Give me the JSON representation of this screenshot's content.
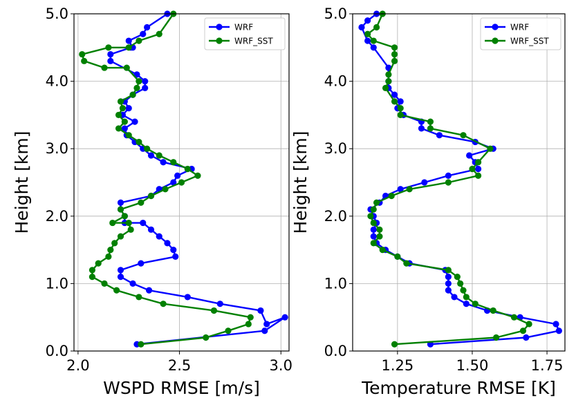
{
  "chart_data": [
    {
      "type": "line",
      "xlabel": "WSPD RMSE [m/s]",
      "ylabel": "Height [km]",
      "xlim": [
        1.98,
        3.04
      ],
      "ylim": [
        0.0,
        5.0
      ],
      "xticks": [
        2.0,
        2.5,
        3.0
      ],
      "xtick_labels": [
        "2.0",
        "2.5",
        "3.0"
      ],
      "yticks": [
        0.0,
        1.0,
        2.0,
        3.0,
        4.0,
        5.0
      ],
      "ytick_labels": [
        "0.0",
        "1.0",
        "2.0",
        "3.0",
        "4.0",
        "5.0"
      ],
      "grid": true,
      "legend_position": "top-right",
      "series": [
        {
          "name": "WRF",
          "color": "#0000ff",
          "x": [
            2.29,
            2.92,
            3.02,
            2.93,
            2.9,
            2.7,
            2.54,
            2.35,
            2.27,
            2.21,
            2.21,
            2.31,
            2.48,
            2.47,
            2.44,
            2.4,
            2.36,
            2.32,
            2.23,
            2.23,
            2.21,
            2.21,
            2.36,
            2.4,
            2.47,
            2.49,
            2.56,
            2.42,
            2.36,
            2.32,
            2.28,
            2.24,
            2.23,
            2.28,
            2.22,
            2.25,
            2.23,
            2.27,
            2.33,
            2.33,
            2.29,
            2.16,
            2.16,
            2.26,
            2.27,
            2.25,
            2.32,
            2.34,
            2.44
          ],
          "y": [
            0.1,
            0.3,
            0.5,
            0.4,
            0.6,
            0.7,
            0.8,
            0.9,
            1.0,
            1.1,
            1.2,
            1.3,
            1.4,
            1.5,
            1.6,
            1.7,
            1.8,
            1.9,
            1.9,
            2.0,
            2.1,
            2.2,
            2.3,
            2.4,
            2.5,
            2.6,
            2.7,
            2.8,
            2.9,
            3.0,
            3.1,
            3.2,
            3.3,
            3.4,
            3.5,
            3.6,
            3.7,
            3.8,
            3.9,
            4.0,
            4.1,
            4.3,
            4.4,
            4.5,
            4.5,
            4.6,
            4.7,
            4.8,
            5.0
          ]
        },
        {
          "name": "WRF_SST",
          "color": "#008000",
          "x": [
            2.31,
            2.63,
            2.74,
            2.84,
            2.85,
            2.67,
            2.42,
            2.3,
            2.19,
            2.13,
            2.07,
            2.07,
            2.1,
            2.15,
            2.16,
            2.18,
            2.21,
            2.26,
            2.25,
            2.17,
            2.23,
            2.21,
            2.31,
            2.36,
            2.43,
            2.51,
            2.59,
            2.54,
            2.47,
            2.4,
            2.34,
            2.3,
            2.25,
            2.2,
            2.23,
            2.2,
            2.22,
            2.21,
            2.27,
            2.29,
            2.3,
            2.24,
            2.13,
            2.03,
            2.02,
            2.15,
            2.25,
            2.3,
            2.4,
            2.47
          ],
          "y": [
            0.1,
            0.2,
            0.3,
            0.4,
            0.5,
            0.6,
            0.7,
            0.8,
            0.9,
            1.0,
            1.1,
            1.2,
            1.3,
            1.4,
            1.5,
            1.6,
            1.7,
            1.8,
            1.9,
            1.9,
            2.0,
            2.1,
            2.2,
            2.3,
            2.4,
            2.5,
            2.6,
            2.7,
            2.8,
            2.9,
            3.0,
            3.1,
            3.2,
            3.3,
            3.4,
            3.5,
            3.6,
            3.7,
            3.8,
            3.9,
            4.0,
            4.2,
            4.2,
            4.3,
            4.4,
            4.5,
            4.5,
            4.6,
            4.7,
            5.0
          ]
        }
      ]
    },
    {
      "type": "line",
      "xlabel": "Temperature RMSE [K]",
      "ylabel": "Height [km]",
      "xlim": [
        1.1,
        1.81
      ],
      "ylim": [
        0.0,
        5.0
      ],
      "xticks": [
        1.25,
        1.5,
        1.75
      ],
      "xtick_labels": [
        "1.25",
        "1.50",
        "1.75"
      ],
      "yticks": [
        0.0,
        1.0,
        2.0,
        3.0,
        4.0,
        5.0
      ],
      "ytick_labels": [
        "0.0",
        "1.0",
        "2.0",
        "3.0",
        "4.0",
        "5.0"
      ],
      "grid": true,
      "legend_position": "top-right",
      "series": [
        {
          "name": "WRF",
          "color": "#0000ff",
          "x": [
            1.36,
            1.68,
            1.79,
            1.78,
            1.66,
            1.55,
            1.48,
            1.44,
            1.42,
            1.42,
            1.42,
            1.41,
            1.29,
            1.25,
            1.21,
            1.18,
            1.17,
            1.17,
            1.18,
            1.17,
            1.16,
            1.19,
            1.21,
            1.26,
            1.34,
            1.42,
            1.52,
            1.51,
            1.49,
            1.57,
            1.51,
            1.39,
            1.33,
            1.33,
            1.27,
            1.25,
            1.26,
            1.24,
            1.22,
            1.22,
            1.22,
            1.17,
            1.15,
            1.13,
            1.15,
            1.18
          ],
          "y": [
            0.1,
            0.2,
            0.3,
            0.4,
            0.5,
            0.6,
            0.7,
            0.8,
            0.9,
            1.0,
            1.1,
            1.2,
            1.3,
            1.4,
            1.5,
            1.6,
            1.7,
            1.8,
            1.9,
            2.0,
            2.1,
            2.2,
            2.3,
            2.4,
            2.5,
            2.6,
            2.7,
            2.8,
            2.9,
            3.0,
            3.1,
            3.2,
            3.3,
            3.4,
            3.5,
            3.6,
            3.7,
            3.8,
            3.9,
            4.0,
            4.2,
            4.5,
            4.6,
            4.8,
            4.9,
            5.0
          ]
        },
        {
          "name": "WRF_SST",
          "color": "#008000",
          "x": [
            1.24,
            1.58,
            1.67,
            1.69,
            1.64,
            1.57,
            1.51,
            1.48,
            1.47,
            1.46,
            1.45,
            1.42,
            1.28,
            1.25,
            1.2,
            1.17,
            1.19,
            1.19,
            1.17,
            1.16,
            1.17,
            1.18,
            1.23,
            1.29,
            1.42,
            1.52,
            1.5,
            1.52,
            1.56,
            1.47,
            1.36,
            1.36,
            1.26,
            1.26,
            1.24,
            1.21,
            1.22,
            1.22,
            1.24,
            1.24,
            1.24,
            1.17,
            1.15,
            1.18,
            1.2
          ],
          "y": [
            0.1,
            0.2,
            0.3,
            0.4,
            0.5,
            0.6,
            0.7,
            0.8,
            0.9,
            1.0,
            1.1,
            1.2,
            1.3,
            1.4,
            1.5,
            1.6,
            1.7,
            1.8,
            1.9,
            2.0,
            2.1,
            2.2,
            2.3,
            2.4,
            2.5,
            2.6,
            2.7,
            2.8,
            3.0,
            3.2,
            3.3,
            3.4,
            3.5,
            3.6,
            3.7,
            3.9,
            4.0,
            4.1,
            4.3,
            4.4,
            4.5,
            4.6,
            4.7,
            4.8,
            5.0
          ]
        }
      ]
    }
  ]
}
